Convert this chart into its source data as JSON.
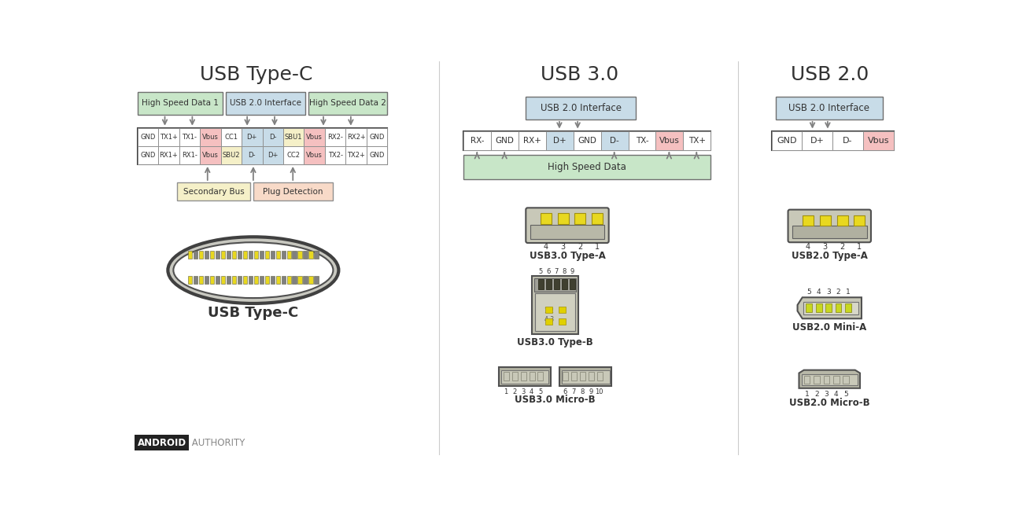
{
  "title_usbc": "USB Type-C",
  "title_usb30": "USB 3.0",
  "title_usb20": "USB 2.0",
  "bg_color": "#ffffff",
  "color_green_light": "#c8e6c8",
  "color_blue_light": "#c8dce8",
  "color_yellow_light": "#f5f0c8",
  "color_peach_light": "#f8dac8",
  "color_pink_light": "#f5c0c0",
  "color_gray_light": "#e0e0e0",
  "color_border": "#606060",
  "color_title": "#333333",
  "usbc_row1": [
    "GND",
    "TX1+",
    "TX1-",
    "Vbus",
    "CC1",
    "D+",
    "D-",
    "SBU1",
    "Vbus",
    "RX2-",
    "RX2+",
    "GND"
  ],
  "usbc_row2": [
    "GND",
    "RX1+",
    "RX1-",
    "Vbus",
    "SBU2",
    "D-",
    "D+",
    "CC2",
    "Vbus",
    "TX2-",
    "TX2+",
    "GND"
  ],
  "usbc_row1_colors": [
    "none",
    "none",
    "none",
    "pink",
    "none",
    "blue",
    "blue",
    "yellow",
    "pink",
    "none",
    "none",
    "none"
  ],
  "usbc_row2_colors": [
    "none",
    "none",
    "none",
    "pink",
    "yellow",
    "blue",
    "blue",
    "none",
    "pink",
    "none",
    "none",
    "none"
  ],
  "usb30_pins": [
    "RX-",
    "GND",
    "RX+",
    "D+",
    "GND",
    "D-",
    "TX-",
    "Vbus",
    "TX+"
  ],
  "usb30_pin_colors": [
    "none",
    "none",
    "none",
    "blue",
    "none",
    "blue",
    "none",
    "pink",
    "none"
  ],
  "usb20_pins": [
    "GND",
    "D+",
    "D-",
    "Vbus"
  ],
  "usb20_pin_colors": [
    "none",
    "none",
    "none",
    "pink"
  ]
}
